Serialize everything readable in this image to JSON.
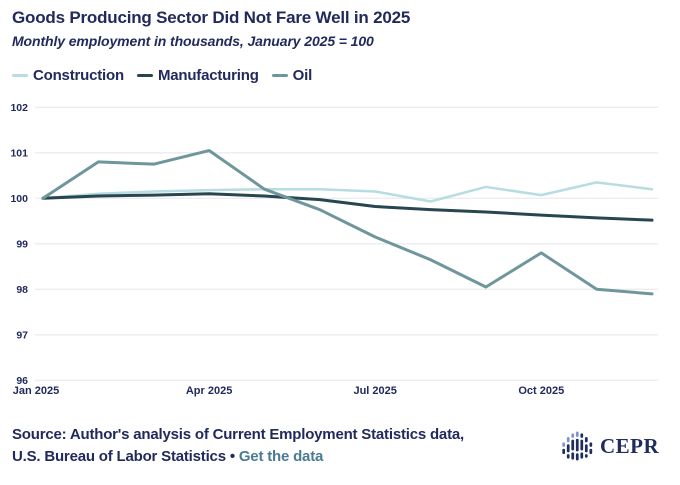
{
  "header": {
    "title": "Goods Producing Sector Did Not Fare Well in 2025",
    "subtitle": "Monthly employment in thousands, January 2025 = 100"
  },
  "chart_data": {
    "type": "line",
    "x": [
      "Jan 2025",
      "Feb 2025",
      "Mar 2025",
      "Apr 2025",
      "May 2025",
      "Jun 2025",
      "Jul 2025",
      "Aug 2025",
      "Sep 2025",
      "Oct 2025",
      "Nov 2025",
      "Dec 2025"
    ],
    "series": [
      {
        "name": "Construction",
        "color": "#b7dce1",
        "stroke_width": 2.5,
        "values": [
          100.0,
          100.1,
          100.15,
          100.18,
          100.2,
          100.2,
          100.15,
          99.93,
          100.25,
          100.07,
          100.35,
          100.2
        ]
      },
      {
        "name": "Manufacturing",
        "color": "#274650",
        "stroke_width": 3,
        "values": [
          100.0,
          100.05,
          100.07,
          100.1,
          100.05,
          99.97,
          99.82,
          99.75,
          99.7,
          99.63,
          99.57,
          99.52
        ]
      },
      {
        "name": "Oil",
        "color": "#6f969c",
        "stroke_width": 3,
        "values": [
          100.0,
          100.8,
          100.75,
          101.05,
          100.2,
          99.75,
          99.15,
          98.65,
          98.05,
          98.8,
          98.0,
          97.9
        ]
      }
    ],
    "title": "Goods Producing Sector Did Not Fare Well in 2025",
    "subtitle": "Monthly employment in thousands, January 2025 = 100",
    "xlabel": "",
    "ylabel": "",
    "ylim": [
      96,
      102
    ],
    "yticks": [
      96,
      97,
      98,
      99,
      100,
      101,
      102
    ],
    "xtick_labels": [
      "Jan 2025",
      "Apr 2025",
      "Jul 2025",
      "Oct 2025"
    ],
    "xtick_month_index": [
      0,
      3,
      6,
      9
    ],
    "grid": "horizontal",
    "grid_color": "#ececf1",
    "legend_position": "top"
  },
  "source": {
    "line1": "Source: Author's analysis of Current Employment Statistics data,",
    "line2_prefix": "U.S. Bureau of Labor Statistics",
    "separator": "•",
    "link_label": "Get the data"
  },
  "logo": {
    "text": "CEPR"
  },
  "colors": {
    "text_navy": "#212a5c",
    "link_teal": "#4a7a94",
    "grid": "#ececf1",
    "logo_navy": "#1e2d5e",
    "logo_light_blue": "#8095cc"
  }
}
